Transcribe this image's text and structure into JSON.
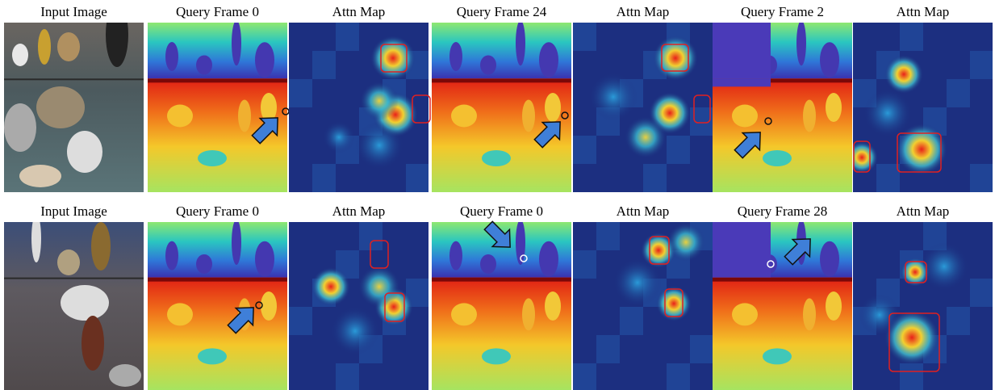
{
  "rows": [
    {
      "labels": [
        "Input Image",
        "Query Frame 0",
        "Attn Map",
        "Query Frame 24",
        "Attn Map",
        "Query Frame 2",
        "Attn Map"
      ]
    },
    {
      "labels": [
        "Input Image",
        "Query Frame 0",
        "Attn Map",
        "Query Frame 0",
        "Attn Map",
        "Query Frame 28",
        "Attn Map"
      ]
    }
  ]
}
